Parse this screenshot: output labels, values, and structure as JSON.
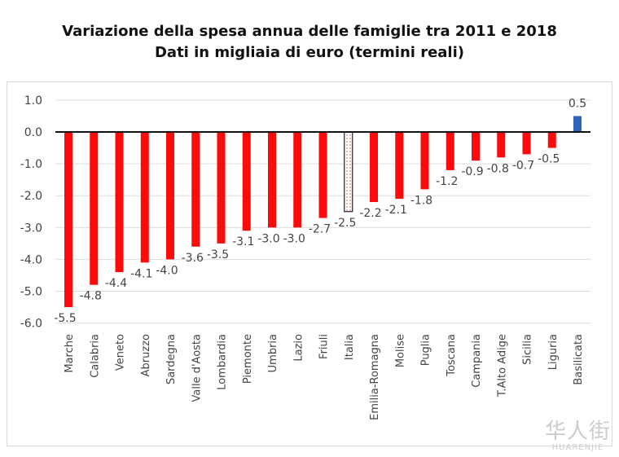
{
  "chart_data": {
    "type": "bar",
    "title": "Variazione della spesa annua delle famiglie tra 2011 e 2018",
    "subtitle": "Dati in migliaia di euro (termini reali)",
    "xlabel": "",
    "ylabel": "",
    "ylim": [
      -6.0,
      1.0
    ],
    "yticks": [
      "1.0",
      "0.0",
      "-1.0",
      "-2.0",
      "-3.0",
      "-4.0",
      "-5.0",
      "-6.0"
    ],
    "grid": true,
    "categories": [
      "Marche",
      "Calabria",
      "Veneto",
      "Abruzzo",
      "Sardegna",
      "Valle d'Aosta",
      "Lombardia",
      "Piemonte",
      "Umbria",
      "Lazio",
      "Friuli",
      "Italia",
      "Emilia-Romagna",
      "Molise",
      "Puglia",
      "Toscana",
      "Campania",
      "T.Alto Adige",
      "Sicilia",
      "Liguria",
      "Basilicata"
    ],
    "values": [
      -5.5,
      -4.8,
      -4.4,
      -4.1,
      -4.0,
      -3.6,
      -3.5,
      -3.1,
      -3.0,
      -3.0,
      -2.7,
      -2.5,
      -2.2,
      -2.1,
      -1.8,
      -1.2,
      -0.9,
      -0.8,
      -0.7,
      -0.5,
      0.5
    ],
    "data_labels": [
      "-5.5",
      "-4.8",
      "-4.4",
      "-4.1",
      "-4.0",
      "-3.6",
      "-3.5",
      "-3.1",
      "-3.0",
      "-3.0",
      "-2.7",
      "-2.5",
      "-2.2",
      "-2.1",
      "-1.8",
      "-1.2",
      "-0.9",
      "-0.8",
      "-0.7",
      "-0.5",
      "0.5"
    ],
    "colors": {
      "negative": "#ff0a0a",
      "positive": "#2e63b8",
      "highlight_category": "Italia",
      "highlight_fill": "dotted pink"
    }
  },
  "watermark": {
    "text": "华人街",
    "subtext": "HUARENJIE"
  }
}
